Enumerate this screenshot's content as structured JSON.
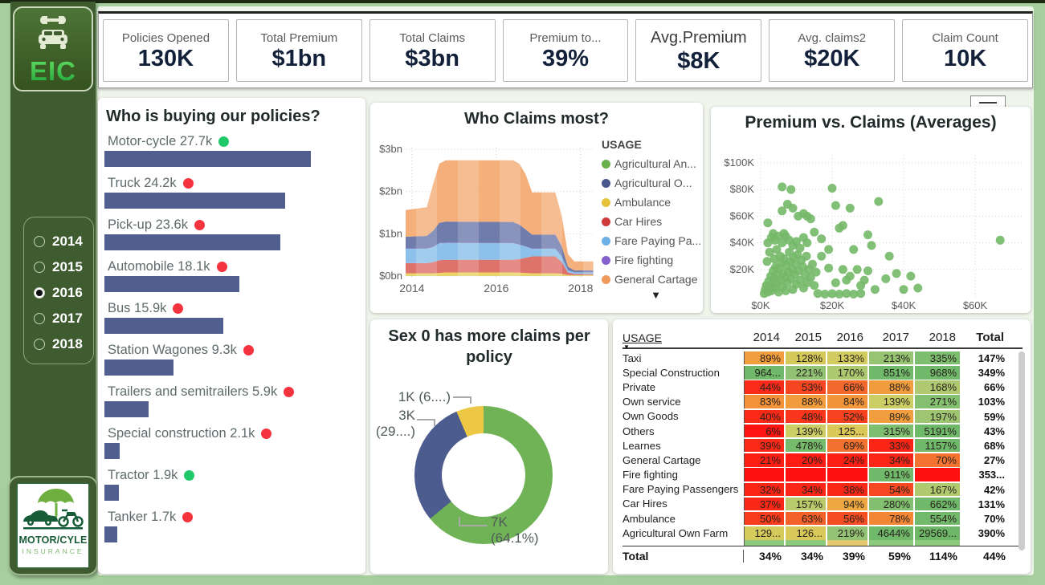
{
  "kpis": [
    {
      "label": "Policies Opened",
      "value": "130K"
    },
    {
      "label": "Total Premium",
      "value": "$1bn"
    },
    {
      "label": "Total Claims",
      "value": "$3bn"
    },
    {
      "label": "Premium to...",
      "value": "39%"
    },
    {
      "label": "Avg.Premium",
      "value": "$8K",
      "emphasis": true
    },
    {
      "label": "Avg. claims2",
      "value": "$20K"
    },
    {
      "label": "Claim Count",
      "value": "10K"
    }
  ],
  "sidebar": {
    "logo_text": "EIC",
    "years": [
      {
        "label": "2014",
        "selected": false
      },
      {
        "label": "2015",
        "selected": false
      },
      {
        "label": "2016",
        "selected": true
      },
      {
        "label": "2017",
        "selected": false
      },
      {
        "label": "2018",
        "selected": false
      }
    ],
    "bottom_logo": {
      "line1": "MOTOR/CYLE",
      "line2": "INSURANCE"
    }
  },
  "icons": {
    "sort_desc": "▼",
    "legend_scroll_down": "▼"
  },
  "chart_data": [
    {
      "id": "buyers_bar",
      "type": "bar",
      "title": "Who is buying our policies?",
      "bar_color": "#515e90",
      "dot_colors": {
        "green": "#1fc96a",
        "red": "#f5333f"
      },
      "max_value_k": 27.7,
      "items": [
        {
          "label": "Motor-cycle 27.7k",
          "value_k": 27.7,
          "dot": "green"
        },
        {
          "label": "Truck 24.2k",
          "value_k": 24.2,
          "dot": "red"
        },
        {
          "label": "Pick-up 23.6k",
          "value_k": 23.6,
          "dot": "red"
        },
        {
          "label": "Automobile 18.1k",
          "value_k": 18.1,
          "dot": "red"
        },
        {
          "label": "Bus 15.9k",
          "value_k": 15.9,
          "dot": "red"
        },
        {
          "label": "Station Wagones 9.3k",
          "value_k": 9.3,
          "dot": "red"
        },
        {
          "label": "Trailers and semitrailers 5.9k",
          "value_k": 5.9,
          "dot": "red"
        },
        {
          "label": "Special construction 2.1k",
          "value_k": 2.1,
          "dot": "red"
        },
        {
          "label": "Tractor 1.9k",
          "value_k": 1.9,
          "dot": "green"
        },
        {
          "label": "Tanker 1.7k",
          "value_k": 1.7,
          "dot": "red"
        }
      ]
    },
    {
      "id": "claims_area",
      "type": "area",
      "title": "Who Claims most?",
      "y_ticks": [
        "$3bn",
        "$2bn",
        "$1bn",
        "$0bn"
      ],
      "x_ticks": [
        "2014",
        "2016",
        "2018"
      ],
      "ylim_bn": [
        0,
        3
      ],
      "legend_title": "USAGE",
      "legend": [
        {
          "label": "Agricultural An...",
          "color": "#6ab04c"
        },
        {
          "label": "Agricultural O...",
          "color": "#48568c"
        },
        {
          "label": "Ambulance",
          "color": "#e6c33c"
        },
        {
          "label": "Car Hires",
          "color": "#cf3a3a"
        },
        {
          "label": "Fare Paying Pa...",
          "color": "#6fb0e4"
        },
        {
          "label": "Fire fighting",
          "color": "#8460cc"
        },
        {
          "label": "General Cartage",
          "color": "#f09a5e"
        }
      ],
      "x_years": [
        2013.85,
        2014.35,
        2014.5,
        2014.65,
        2014.8,
        2016.4,
        2016.55,
        2016.7,
        2016.85,
        2017.4,
        2017.55,
        2017.7,
        2017.85,
        2018.3
      ],
      "series_stacked_bottom_to_top": [
        {
          "name": "Agricultural An...",
          "color": "#6ab04c",
          "values_bn": [
            0.005,
            0.005,
            0.005,
            0.005,
            0.005,
            0.005,
            0.005,
            0.005,
            0.005,
            0.005,
            0.005,
            0.005,
            0.005,
            0.005
          ]
        },
        {
          "name": "Ambulance",
          "color": "#ecd051",
          "values_bn": [
            0.06,
            0.06,
            0.06,
            0.07,
            0.08,
            0.08,
            0.075,
            0.07,
            0.06,
            0.06,
            0.05,
            0.02,
            0.015,
            0.015
          ]
        },
        {
          "name": "Car Hires",
          "color": "#d96057",
          "values_bn": [
            0.24,
            0.24,
            0.26,
            0.3,
            0.3,
            0.3,
            0.32,
            0.36,
            0.4,
            0.4,
            0.28,
            0.06,
            0.03,
            0.03
          ]
        },
        {
          "name": "Fare Paying Pa...",
          "color": "#7db8e8",
          "values_bn": [
            0.34,
            0.34,
            0.36,
            0.4,
            0.4,
            0.39,
            0.34,
            0.26,
            0.18,
            0.18,
            0.13,
            0.05,
            0.035,
            0.035
          ]
        },
        {
          "name": "Fire fighting",
          "color": "#8460cc",
          "values_bn": [
            0.005,
            0.005,
            0.005,
            0.005,
            0.005,
            0.005,
            0.005,
            0.005,
            0.005,
            0.005,
            0.005,
            0.005,
            0.005,
            0.005
          ]
        },
        {
          "name": "Agricultural O...",
          "color": "#5b6aa0",
          "values_bn": [
            0.28,
            0.3,
            0.38,
            0.48,
            0.5,
            0.5,
            0.47,
            0.4,
            0.33,
            0.33,
            0.24,
            0.08,
            0.045,
            0.045
          ]
        },
        {
          "name": "General Cartage",
          "color": "#f4a469",
          "values_bn": [
            0.63,
            0.68,
            1.1,
            1.4,
            1.45,
            1.46,
            1.44,
            1.3,
            1.0,
            1.0,
            0.72,
            0.3,
            0.21,
            0.21
          ]
        }
      ]
    },
    {
      "id": "premium_claims_scatter",
      "type": "scatter",
      "title": "Premium vs. Claims (Averages)",
      "dot_color": "#74b868",
      "y_ticks": [
        "$100K",
        "$80K",
        "$60K",
        "$40K",
        "$20K"
      ],
      "x_ticks": [
        "$0K",
        "$20K",
        "$40K",
        "$60K"
      ],
      "points_k": [
        [
          1,
          2
        ],
        [
          1.3,
          5
        ],
        [
          1.6,
          8
        ],
        [
          2,
          3
        ],
        [
          2.2,
          11
        ],
        [
          2.5,
          6
        ],
        [
          2.8,
          15
        ],
        [
          3,
          4
        ],
        [
          3.2,
          9
        ],
        [
          3.5,
          19
        ],
        [
          3.8,
          13
        ],
        [
          4,
          6
        ],
        [
          4.2,
          22
        ],
        [
          4.5,
          10
        ],
        [
          4.8,
          16
        ],
        [
          5,
          3
        ],
        [
          5.2,
          21
        ],
        [
          5.5,
          12
        ],
        [
          5.8,
          25
        ],
        [
          6,
          7
        ],
        [
          6.2,
          17
        ],
        [
          6.5,
          28
        ],
        [
          6.8,
          14
        ],
        [
          7,
          4
        ],
        [
          7.2,
          23
        ],
        [
          7.5,
          10
        ],
        [
          7.8,
          18
        ],
        [
          8,
          33
        ],
        [
          8.2,
          26
        ],
        [
          8.5,
          13
        ],
        [
          8.8,
          20
        ],
        [
          9,
          5
        ],
        [
          9.2,
          29
        ],
        [
          9.5,
          16
        ],
        [
          9.8,
          24
        ],
        [
          10,
          9
        ],
        [
          10.3,
          31
        ],
        [
          10.6,
          19
        ],
        [
          11,
          12
        ],
        [
          11.4,
          27
        ],
        [
          11.8,
          22
        ],
        [
          12,
          6
        ],
        [
          12.4,
          16
        ],
        [
          12.8,
          30
        ],
        [
          13,
          10
        ],
        [
          13.5,
          20
        ],
        [
          14,
          14
        ],
        [
          14.5,
          24
        ],
        [
          15,
          8
        ],
        [
          15.5,
          18
        ],
        [
          2,
          40
        ],
        [
          3,
          44
        ],
        [
          3.5,
          47
        ],
        [
          4,
          42
        ],
        [
          5,
          45
        ],
        [
          6,
          40
        ],
        [
          7,
          45
        ],
        [
          8,
          42
        ],
        [
          9,
          38
        ],
        [
          10,
          41
        ],
        [
          11,
          36
        ],
        [
          12,
          44
        ],
        [
          13,
          40
        ],
        [
          14,
          58
        ],
        [
          15,
          48
        ],
        [
          6.5,
          47
        ],
        [
          2,
          55
        ],
        [
          6,
          64
        ],
        [
          7.5,
          69
        ],
        [
          9,
          66
        ],
        [
          10.5,
          60
        ],
        [
          12,
          62
        ],
        [
          13,
          60
        ],
        [
          6,
          82
        ],
        [
          8.5,
          80
        ],
        [
          20,
          81
        ],
        [
          33,
          71
        ],
        [
          25,
          66
        ],
        [
          21,
          68
        ],
        [
          17,
          43
        ],
        [
          19,
          35
        ],
        [
          22,
          51
        ],
        [
          23,
          53
        ],
        [
          26,
          35
        ],
        [
          30,
          46
        ],
        [
          31,
          38
        ],
        [
          36,
          30
        ],
        [
          19,
          21
        ],
        [
          23,
          20
        ],
        [
          27,
          20
        ],
        [
          30,
          19
        ],
        [
          35,
          13
        ],
        [
          29,
          12
        ],
        [
          25,
          15
        ],
        [
          40,
          5
        ],
        [
          44,
          6
        ],
        [
          42,
          15
        ],
        [
          38,
          17
        ],
        [
          67,
          42
        ],
        [
          16,
          2
        ],
        [
          18,
          1.5
        ],
        [
          20,
          1.8
        ],
        [
          22,
          1.5
        ],
        [
          24,
          2
        ],
        [
          26,
          1.5
        ],
        [
          28,
          2
        ],
        [
          17,
          30
        ],
        [
          2.5,
          33
        ],
        [
          4.5,
          35
        ],
        [
          5.5,
          30
        ],
        [
          3.8,
          28
        ],
        [
          1.8,
          26
        ],
        [
          28,
          8
        ],
        [
          32,
          5
        ],
        [
          21,
          10
        ],
        [
          24,
          12
        ]
      ]
    },
    {
      "id": "sex_donut",
      "type": "pie",
      "title_line1": "Sex 0 has more claims per",
      "title_line2": "policy",
      "slices": [
        {
          "value_pct": 64.1,
          "color": "#6fb356",
          "label": "7K\n(64.1%)"
        },
        {
          "value_pct": 29.5,
          "color": "#4d5c8e",
          "label": "3K\n(29....)"
        },
        {
          "value_pct": 6.4,
          "color": "#ecc846",
          "label": "1K (6....)"
        }
      ]
    },
    {
      "id": "usage_matrix",
      "type": "table",
      "headers": [
        "USAGE",
        "2014",
        "2015",
        "2016",
        "2017",
        "2018",
        "Total"
      ],
      "rows": [
        {
          "label": "Taxi",
          "cells": [
            "89%",
            "128%",
            "133%",
            "213%",
            "335%"
          ],
          "total": "147%"
        },
        {
          "label": "Special Construction",
          "cells": [
            "964...",
            "221%",
            "170%",
            "851%",
            "968%"
          ],
          "total": "349%"
        },
        {
          "label": "Private",
          "cells": [
            "44%",
            "53%",
            "66%",
            "88%",
            "168%"
          ],
          "total": "66%"
        },
        {
          "label": "Own service",
          "cells": [
            "83%",
            "88%",
            "84%",
            "139%",
            "271%"
          ],
          "total": "103%"
        },
        {
          "label": "Own Goods",
          "cells": [
            "40%",
            "48%",
            "52%",
            "89%",
            "197%"
          ],
          "total": "59%"
        },
        {
          "label": "Others",
          "cells": [
            "6%",
            "139%",
            "125...",
            "315%",
            "5191%"
          ],
          "total": "43%"
        },
        {
          "label": "Learnes",
          "cells": [
            "39%",
            "478%",
            "69%",
            "33%",
            "1157%"
          ],
          "total": "68%"
        },
        {
          "label": "General Cartage",
          "cells": [
            "21%",
            "20%",
            "24%",
            "34%",
            "70%"
          ],
          "total": "27%"
        },
        {
          "label": "Fire fighting",
          "cells": [
            "",
            "",
            "",
            "911%",
            ""
          ],
          "total": "353..."
        },
        {
          "label": "Fare Paying Passengers",
          "cells": [
            "32%",
            "34%",
            "38%",
            "54%",
            "167%"
          ],
          "total": "42%"
        },
        {
          "label": "Car Hires",
          "cells": [
            "37%",
            "157%",
            "94%",
            "280%",
            "662%"
          ],
          "total": "131%"
        },
        {
          "label": "Ambulance",
          "cells": [
            "50%",
            "63%",
            "56%",
            "78%",
            "554%"
          ],
          "total": "70%"
        },
        {
          "label": "Agricultural Own Farm",
          "cells": [
            "129...",
            "126...",
            "219%",
            "4644%",
            "29569..."
          ],
          "total": "390%"
        }
      ],
      "partial_row_colors": [
        "#8cc97c",
        "#8cc97c",
        "#e2c86e",
        "#8cc97c",
        "#8cc97c"
      ],
      "total_row": {
        "label": "Total",
        "cells": [
          "34%",
          "34%",
          "39%",
          "59%",
          "114%"
        ],
        "total": "44%"
      }
    }
  ]
}
